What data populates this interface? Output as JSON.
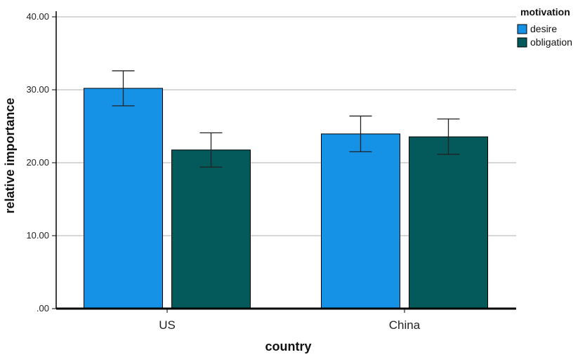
{
  "chart_data": {
    "type": "bar",
    "categories": [
      "US",
      "China"
    ],
    "series": [
      {
        "name": "desire",
        "values": [
          30.2,
          23.95
        ],
        "error_low": [
          27.8,
          21.5
        ],
        "error_high": [
          32.6,
          26.4
        ],
        "color": "#1591e6"
      },
      {
        "name": "obligation",
        "values": [
          21.75,
          23.55
        ],
        "error_low": [
          19.4,
          21.15
        ],
        "error_high": [
          24.1,
          26.0
        ],
        "color": "#04595a"
      }
    ],
    "xlabel": "country",
    "ylabel": "relative importance",
    "ylim": [
      0,
      40
    ],
    "yticks": [
      0,
      10,
      20,
      30,
      40
    ],
    "ytick_labels": [
      ".00",
      "10.00",
      "20.00",
      "30.00",
      "40.00"
    ],
    "legend_title": "motivation",
    "legend_position": "top-right",
    "grid": true
  }
}
